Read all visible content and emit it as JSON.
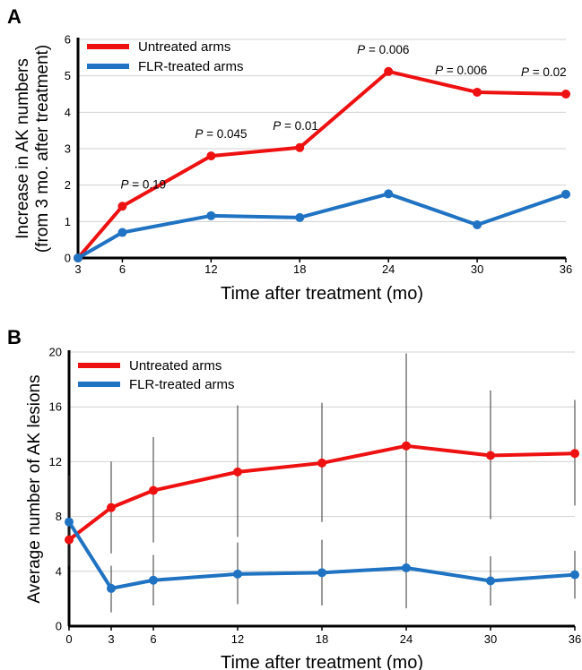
{
  "colors": {
    "untreated": "#ee1111",
    "flr": "#1f73c2",
    "grid": "#d0d0d0",
    "axis": "#000000",
    "errorbar": "#333333"
  },
  "chart_data": [
    {
      "panel": "A",
      "type": "line",
      "xlabel": "Time after treatment (mo)",
      "ylabel": [
        "Increase in AK numbers",
        "(from 3 mo. after treatment)"
      ],
      "xlim": [
        3,
        36
      ],
      "ylim": [
        0,
        6
      ],
      "x_ticks": [
        3,
        6,
        12,
        18,
        24,
        30,
        36
      ],
      "y_ticks": [
        0,
        1,
        2,
        3,
        4,
        5,
        6
      ],
      "grid": "horizontal",
      "legend": "top-left",
      "x": [
        3,
        6,
        12,
        18,
        24,
        30,
        36
      ],
      "series": [
        {
          "name": "Untreated arms",
          "color": "untreated",
          "values": [
            0,
            1.42,
            2.8,
            3.03,
            5.12,
            4.55,
            4.5
          ]
        },
        {
          "name": "FLR-treated arms",
          "color": "flr",
          "values": [
            0,
            0.7,
            1.16,
            1.11,
            1.76,
            0.91,
            1.75
          ]
        }
      ],
      "annotations": [
        {
          "text": "P = 0.19",
          "x": 6
        },
        {
          "text": "P = 0.045",
          "x": 12
        },
        {
          "text": "P = 0.01",
          "x": 18
        },
        {
          "text": "P = 0.006",
          "x": 24
        },
        {
          "text": "P = 0.006",
          "x": 30
        },
        {
          "text": "P = 0.02",
          "x": 36
        }
      ]
    },
    {
      "panel": "B",
      "type": "line",
      "xlabel": "Time after treatment (mo)",
      "ylabel": [
        "Average number of AK lesions"
      ],
      "xlim": [
        0,
        36
      ],
      "ylim": [
        0,
        20
      ],
      "x_ticks": [
        0,
        3,
        6,
        12,
        18,
        24,
        30,
        36
      ],
      "y_ticks": [
        0,
        4,
        8,
        12,
        16,
        20
      ],
      "grid": "horizontal",
      "legend": "top-left",
      "x": [
        0,
        3,
        6,
        12,
        18,
        24,
        30,
        36
      ],
      "series": [
        {
          "name": "Untreated arms",
          "color": "untreated",
          "values": [
            6.3,
            8.65,
            9.9,
            11.25,
            11.9,
            13.15,
            12.45,
            12.6
          ],
          "error": [
            [
              6.3,
              6.3
            ],
            [
              5.3,
              12.0
            ],
            [
              6.1,
              13.8
            ],
            [
              6.5,
              16.1
            ],
            [
              7.6,
              16.3
            ],
            [
              6.5,
              19.9
            ],
            [
              7.8,
              17.2
            ],
            [
              8.8,
              16.5
            ]
          ]
        },
        {
          "name": "FLR-treated arms",
          "color": "flr",
          "values": [
            7.6,
            2.75,
            3.35,
            3.8,
            3.9,
            4.25,
            3.3,
            3.75
          ],
          "error": [
            [
              4.4,
              11.0
            ],
            [
              1.0,
              4.4
            ],
            [
              1.5,
              5.2
            ],
            [
              1.6,
              6.1
            ],
            [
              1.5,
              6.3
            ],
            [
              1.3,
              7.3
            ],
            [
              1.5,
              5.1
            ],
            [
              2.0,
              5.5
            ]
          ]
        }
      ]
    }
  ]
}
